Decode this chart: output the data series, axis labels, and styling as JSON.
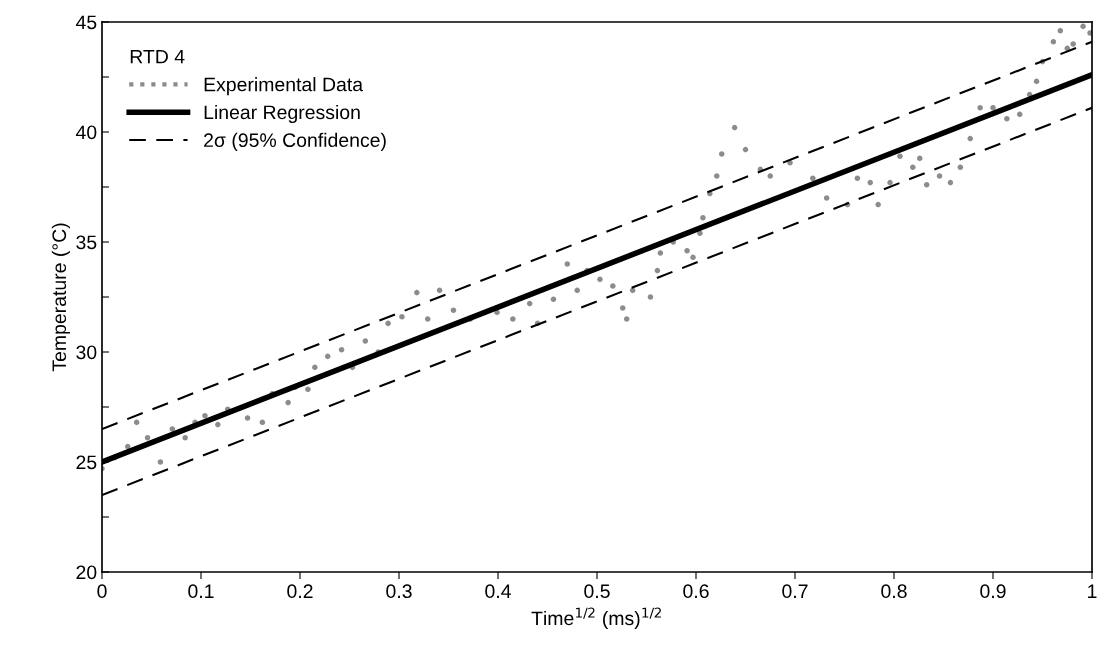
{
  "chart_data": {
    "type": "scatter",
    "xlabel": "Time$^{1/2}$ (ms)$^{1/2}$",
    "ylabel": "Temperature (°C)",
    "legend_title": "RTD 4",
    "xlim": [
      0,
      1
    ],
    "ylim": [
      20,
      45
    ],
    "xticks": [
      0,
      0.1,
      0.2,
      0.3,
      0.4,
      0.5,
      0.6,
      0.7,
      0.8,
      0.9,
      1
    ],
    "yticks": [
      20,
      {
        "value": 22.5,
        "label": null
      },
      25,
      {
        "value": 27.5,
        "label": null
      },
      30,
      {
        "value": 32.5,
        "label": null
      },
      35,
      {
        "value": 37.5,
        "label": null
      },
      40,
      {
        "value": 42.5,
        "label": null
      },
      45
    ],
    "grid": false,
    "legend": "top left",
    "series": [
      {
        "name": "Experimental Data",
        "marker": "circle",
        "color": "#8c8c8c",
        "x": [
          0,
          0.013,
          0.026,
          0.035,
          0.046,
          0.059,
          0.071,
          0.084,
          0.094,
          0.104,
          0.117,
          0.127,
          0.147,
          0.162,
          0.172,
          0.188,
          0.195,
          0.208,
          0.215,
          0.228,
          0.242,
          0.253,
          0.266,
          0.279,
          0.289,
          0.303,
          0.318,
          0.329,
          0.341,
          0.355,
          0.372,
          0.399,
          0.415,
          0.432,
          0.44,
          0.456,
          0.47,
          0.48,
          0.49,
          0.503,
          0.516,
          0.526,
          0.53,
          0.536,
          0.554,
          0.561,
          0.564,
          0.577,
          0.591,
          0.597,
          0.604,
          0.607,
          0.614,
          0.621,
          0.626,
          0.639,
          0.65,
          0.665,
          0.675,
          0.695,
          0.718,
          0.732,
          0.753,
          0.763,
          0.776,
          0.784,
          0.796,
          0.806,
          0.819,
          0.826,
          0.833,
          0.846,
          0.857,
          0.867,
          0.877,
          0.887,
          0.9,
          0.914,
          0.927,
          0.937,
          0.944,
          0.95,
          0.961,
          0.968,
          0.975,
          0.981,
          0.991,
          0.998
        ],
        "values": [
          24.7,
          25.2,
          25.7,
          26.8,
          26.1,
          25.0,
          26.5,
          26.1,
          26.8,
          27.1,
          26.7,
          27.4,
          27.0,
          26.8,
          28.1,
          27.7,
          28.4,
          28.3,
          29.3,
          29.8,
          30.1,
          29.3,
          30.5,
          30.0,
          31.3,
          31.6,
          32.7,
          31.5,
          32.8,
          31.9,
          31.5,
          31.8,
          31.5,
          32.2,
          31.3,
          32.4,
          34.0,
          32.8,
          33.7,
          33.3,
          33.0,
          32.0,
          31.5,
          32.8,
          32.5,
          33.7,
          34.5,
          35.0,
          34.6,
          34.3,
          35.4,
          36.1,
          37.2,
          38.0,
          39.0,
          40.2,
          39.2,
          38.3,
          38.0,
          38.6,
          37.9,
          37.0,
          36.7,
          37.9,
          37.7,
          36.7,
          37.7,
          38.9,
          38.4,
          38.8,
          37.6,
          38.0,
          37.7,
          38.4,
          39.7,
          41.1,
          41.1,
          40.6,
          40.8,
          41.7,
          42.3,
          43.2,
          44.1,
          44.6,
          43.8,
          44.0,
          44.8,
          44.5
        ]
      },
      {
        "name": "Linear Regression",
        "type": "line",
        "line_style": "solid",
        "marker": "none",
        "color": "#000000",
        "x": [
          0,
          1
        ],
        "values": [
          25.0,
          42.6
        ]
      },
      {
        "name": "2σ (95% Confidence)",
        "type": "line",
        "line_style": "dashed",
        "marker": "none",
        "color": "#000000",
        "x": [
          0,
          1
        ],
        "values": [
          26.5,
          44.1
        ]
      },
      {
        "type": "line",
        "line_style": "dashed",
        "marker": "none",
        "color": "#000000",
        "x": [
          0,
          1
        ],
        "values": [
          23.5,
          41.1
        ]
      }
    ]
  }
}
